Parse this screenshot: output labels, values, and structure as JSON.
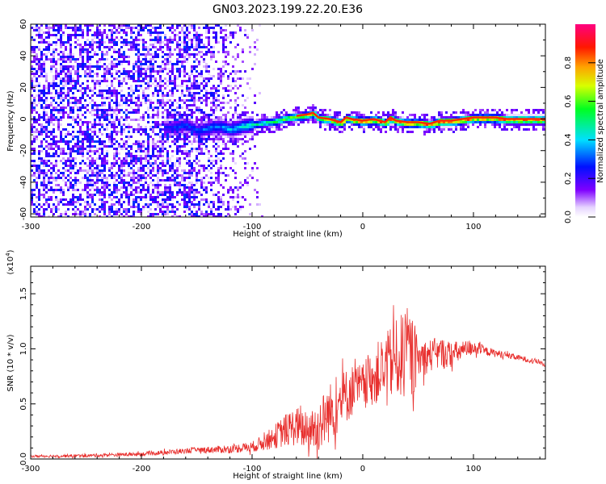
{
  "title": "GN03.2023.199.22.20.E36",
  "chart_data": [
    {
      "type": "heatmap",
      "xlabel": "Height of straight line (km)",
      "ylabel": "Frequency (Hz)",
      "xlim": [
        -300,
        165
      ],
      "ylim": [
        -62,
        60
      ],
      "x_ticks": [
        -300,
        -200,
        -100,
        0,
        100
      ],
      "y_ticks": [
        -60,
        -40,
        -20,
        0,
        20,
        40,
        60
      ],
      "x_tick_labels": [
        "-300",
        "-200",
        "-100",
        "0",
        "100"
      ],
      "y_tick_labels": [
        "-60",
        "-40",
        "-20",
        "0",
        "20",
        "40",
        "60"
      ],
      "colorbar": {
        "label": "Normalized spectral amplitude",
        "range": [
          0,
          1
        ],
        "ticks": [
          0.0,
          0.2,
          0.4,
          0.6,
          0.8
        ],
        "tick_labels": [
          "0.0",
          "0.2",
          "0.4",
          "0.6",
          "0.8"
        ]
      },
      "ridge_line": {
        "x": [
          -175,
          -160,
          -150,
          -140,
          -130,
          -120,
          -110,
          -100,
          -90,
          -80,
          -70,
          -60,
          -50,
          -45,
          -40,
          -30,
          -20,
          -15,
          -10,
          0,
          10,
          20,
          25,
          30,
          40,
          50,
          60,
          70,
          80,
          90,
          100,
          110,
          120,
          130,
          140,
          150,
          160,
          165
        ],
        "y": [
          -5,
          -3,
          -7,
          -5,
          -4,
          -6,
          -4,
          -3,
          -2,
          -1,
          1,
          2,
          3,
          4,
          1,
          0,
          -2,
          1,
          0,
          -1,
          0,
          -2,
          1,
          -1,
          -2,
          -2,
          -3,
          -1,
          -1,
          0,
          1,
          1,
          1,
          0,
          0,
          0,
          0,
          0
        ],
        "peak_amplitude": [
          0.3,
          0.35,
          0.35,
          0.38,
          0.4,
          0.45,
          0.5,
          0.55,
          0.6,
          0.65,
          0.7,
          0.75,
          0.8,
          0.85,
          0.85,
          0.9,
          0.9,
          0.9,
          0.95,
          0.95,
          0.95,
          0.95,
          0.95,
          0.95,
          0.95,
          0.95,
          0.95,
          0.95,
          0.95,
          0.95,
          0.95,
          0.95,
          0.95,
          0.95,
          0.95,
          0.95,
          0.95,
          0.95
        ]
      },
      "noise_region": {
        "x": [
          -300,
          -90
        ],
        "level": 0.25
      }
    },
    {
      "type": "line",
      "xlabel": "Height of straight line (km)",
      "ylabel": "SNR (10 * v/v)",
      "y_multiplier": "(x10",
      "y_multiplier_exp": "4",
      "y_multiplier_close": ")",
      "xlim": [
        -300,
        165
      ],
      "ylim": [
        0,
        17500
      ],
      "x_ticks": [
        -300,
        -200,
        -100,
        0,
        100
      ],
      "y_ticks": [
        0,
        5000,
        10000,
        15000
      ],
      "x_tick_labels": [
        "-300",
        "-200",
        "-100",
        "0",
        "100"
      ],
      "y_tick_labels": [
        "0.0",
        "0.5",
        "1.0",
        "1.5"
      ],
      "color": "#e8302e",
      "envelope": {
        "x": [
          -300,
          -250,
          -200,
          -150,
          -120,
          -100,
          -90,
          -80,
          -70,
          -60,
          -50,
          -40,
          -30,
          -20,
          -10,
          0,
          10,
          20,
          30,
          40,
          45,
          50,
          60,
          70,
          80,
          90,
          100,
          110,
          120,
          130,
          140,
          150,
          160,
          165
        ],
        "y_center": [
          250,
          300,
          450,
          800,
          900,
          1100,
          1500,
          2000,
          2600,
          3000,
          2400,
          3000,
          4200,
          5200,
          6200,
          6600,
          7600,
          8300,
          9000,
          9600,
          9300,
          9000,
          9400,
          9600,
          9500,
          9800,
          10200,
          9800,
          9600,
          9400,
          9200,
          9000,
          8800,
          8500
        ],
        "y_spread": [
          200,
          250,
          300,
          450,
          600,
          800,
          1200,
          1800,
          2500,
          3000,
          3000,
          4000,
          4500,
          4500,
          4000,
          3500,
          4500,
          5000,
          6000,
          7000,
          6500,
          3000,
          2500,
          2500,
          2000,
          1500,
          1200,
          700,
          600,
          500,
          450,
          400,
          400,
          400
        ]
      }
    }
  ]
}
